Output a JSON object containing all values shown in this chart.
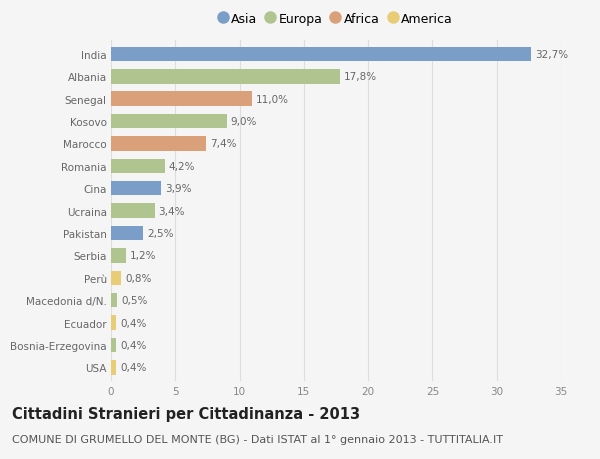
{
  "categories": [
    "India",
    "Albania",
    "Senegal",
    "Kosovo",
    "Marocco",
    "Romania",
    "Cina",
    "Ucraina",
    "Pakistan",
    "Serbia",
    "Perù",
    "Macedonia d/N.",
    "Ecuador",
    "Bosnia-Erzegovina",
    "USA"
  ],
  "values": [
    32.7,
    17.8,
    11.0,
    9.0,
    7.4,
    4.2,
    3.9,
    3.4,
    2.5,
    1.2,
    0.8,
    0.5,
    0.4,
    0.4,
    0.4
  ],
  "labels": [
    "32,7%",
    "17,8%",
    "11,0%",
    "9,0%",
    "7,4%",
    "4,2%",
    "3,9%",
    "3,4%",
    "2,5%",
    "1,2%",
    "0,8%",
    "0,5%",
    "0,4%",
    "0,4%",
    "0,4%"
  ],
  "colors": [
    "#7b9ec9",
    "#b0c48f",
    "#d9a07a",
    "#b0c48f",
    "#d9a07a",
    "#b0c48f",
    "#7b9ec9",
    "#b0c48f",
    "#7b9ec9",
    "#b0c48f",
    "#e8cc76",
    "#b0c48f",
    "#e8cc76",
    "#b0c48f",
    "#e8cc76"
  ],
  "legend_labels": [
    "Asia",
    "Europa",
    "Africa",
    "America"
  ],
  "legend_colors": [
    "#7b9ec9",
    "#b0c48f",
    "#d9a07a",
    "#e8cc76"
  ],
  "title": "Cittadini Stranieri per Cittadinanza - 2013",
  "subtitle": "COMUNE DI GRUMELLO DEL MONTE (BG) - Dati ISTAT al 1° gennaio 2013 - TUTTITALIA.IT",
  "xlim": [
    0,
    35
  ],
  "xticks": [
    0,
    5,
    10,
    15,
    20,
    25,
    30,
    35
  ],
  "bg_color": "#f5f5f5",
  "grid_color": "#dddddd",
  "bar_height": 0.65,
  "title_fontsize": 10.5,
  "subtitle_fontsize": 8,
  "label_fontsize": 7.5,
  "tick_fontsize": 7.5,
  "legend_fontsize": 9
}
